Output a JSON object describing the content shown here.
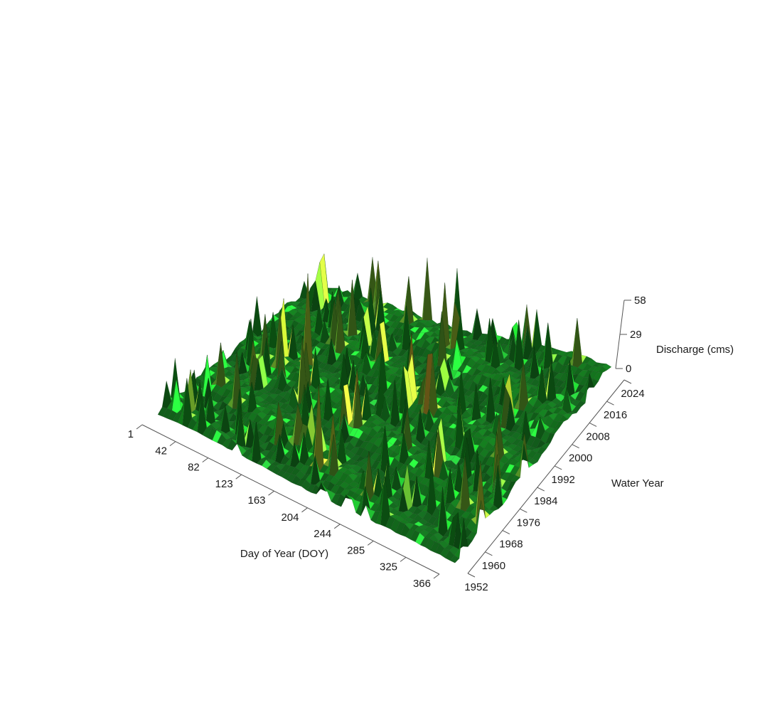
{
  "chart_data": {
    "type": "surface",
    "x_axis": {
      "label": "Day of Year (DOY)",
      "ticks": [
        1,
        42,
        82,
        123,
        163,
        204,
        244,
        285,
        325,
        366
      ],
      "range": [
        1,
        366
      ]
    },
    "y_axis": {
      "label": "Water Year",
      "ticks": [
        1952,
        1960,
        1968,
        1976,
        1984,
        1992,
        2000,
        2008,
        2016,
        2024
      ],
      "range": [
        1952,
        2024
      ]
    },
    "z_axis": {
      "label": "Discharge (cms)",
      "ticks": [
        0,
        29,
        58
      ],
      "range": [
        0,
        58
      ]
    },
    "colors": {
      "low": "#0f5a1a",
      "mid": "#2e9a3e",
      "high_light": "#dff5d8",
      "peak_yellow": "#c9b82a",
      "peak_red": "#8a1a10"
    }
  }
}
